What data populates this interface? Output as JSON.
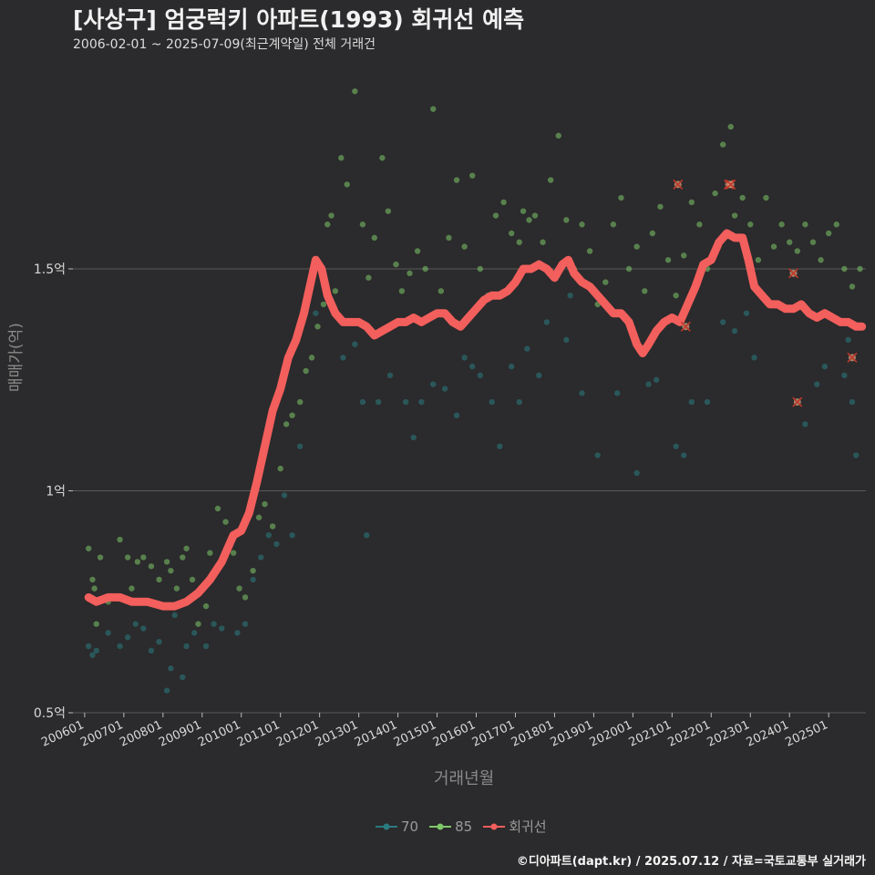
{
  "chart_data": {
    "type": "scatter",
    "title": "[사상구] 엄궁럭키 아파트(1993) 회귀선 예측",
    "subtitle": "2006-02-01 ~ 2025-07-09(최근계약일) 전체 거래건",
    "xlabel": "거래년월",
    "ylabel": "매매가(억)",
    "ylim": [
      0.5,
      1.9
    ],
    "xlim": [
      2005.7,
      2025.95
    ],
    "yticks": [
      0.5,
      1.0,
      1.5
    ],
    "ytick_labels": [
      "0.5억",
      "1억",
      "1.5억"
    ],
    "xticks": [
      2006,
      2007,
      2008,
      2009,
      2010,
      2011,
      2012,
      2013,
      2014,
      2015,
      2016,
      2017,
      2018,
      2019,
      2020,
      2021,
      2022,
      2023,
      2024,
      2025
    ],
    "xtick_labels": [
      "200601",
      "200701",
      "200801",
      "200901",
      "201001",
      "201101",
      "201201",
      "201301",
      "201401",
      "201501",
      "201601",
      "201701",
      "201801",
      "201901",
      "202001",
      "202101",
      "202201",
      "202301",
      "202401",
      "202501"
    ],
    "legend": [
      "70",
      "85",
      "회귀선"
    ],
    "legend_position": "bottom",
    "colors": {
      "s70": "#2a7b82",
      "s85": "#7ec96a",
      "line": "#f25f5c",
      "cancel": "#c0392b",
      "grid": "#5a5a5a"
    },
    "series": [
      {
        "name": "70",
        "points": [
          [
            2006.1,
            0.65
          ],
          [
            2006.2,
            0.63
          ],
          [
            2006.3,
            0.64
          ],
          [
            2006.6,
            0.68
          ],
          [
            2006.9,
            0.65
          ],
          [
            2007.1,
            0.67
          ],
          [
            2007.3,
            0.7
          ],
          [
            2007.5,
            0.69
          ],
          [
            2007.7,
            0.64
          ],
          [
            2007.9,
            0.66
          ],
          [
            2008.1,
            0.55
          ],
          [
            2008.2,
            0.6
          ],
          [
            2008.3,
            0.72
          ],
          [
            2008.5,
            0.58
          ],
          [
            2008.6,
            0.65
          ],
          [
            2008.8,
            0.68
          ],
          [
            2009.1,
            0.65
          ],
          [
            2009.3,
            0.7
          ],
          [
            2009.5,
            0.69
          ],
          [
            2009.9,
            0.68
          ],
          [
            2010.1,
            0.7
          ],
          [
            2010.3,
            0.8
          ],
          [
            2010.5,
            0.85
          ],
          [
            2010.7,
            0.9
          ],
          [
            2010.9,
            0.88
          ],
          [
            2011.1,
            0.99
          ],
          [
            2011.3,
            0.9
          ],
          [
            2011.5,
            1.1
          ],
          [
            2011.9,
            1.4
          ],
          [
            2012.6,
            1.3
          ],
          [
            2012.9,
            1.33
          ],
          [
            2013.1,
            1.2
          ],
          [
            2013.2,
            0.9
          ],
          [
            2013.5,
            1.2
          ],
          [
            2013.8,
            1.26
          ],
          [
            2014.2,
            1.2
          ],
          [
            2014.4,
            1.12
          ],
          [
            2014.6,
            1.2
          ],
          [
            2014.9,
            1.24
          ],
          [
            2015.2,
            1.23
          ],
          [
            2015.5,
            1.17
          ],
          [
            2015.7,
            1.3
          ],
          [
            2015.9,
            1.28
          ],
          [
            2016.1,
            1.26
          ],
          [
            2016.4,
            1.2
          ],
          [
            2016.6,
            1.1
          ],
          [
            2016.9,
            1.28
          ],
          [
            2017.1,
            1.2
          ],
          [
            2017.3,
            1.32
          ],
          [
            2017.6,
            1.26
          ],
          [
            2017.8,
            1.38
          ],
          [
            2018.3,
            1.34
          ],
          [
            2018.4,
            1.44
          ],
          [
            2018.7,
            1.22
          ],
          [
            2019.1,
            1.08
          ],
          [
            2019.6,
            1.22
          ],
          [
            2020.1,
            1.04
          ],
          [
            2020.4,
            1.24
          ],
          [
            2020.6,
            1.25
          ],
          [
            2021.1,
            1.1
          ],
          [
            2021.3,
            1.08
          ],
          [
            2021.5,
            1.2
          ],
          [
            2021.9,
            1.2
          ],
          [
            2022.3,
            1.38
          ],
          [
            2022.6,
            1.36
          ],
          [
            2022.9,
            1.4
          ],
          [
            2023.1,
            1.3
          ],
          [
            2024.4,
            1.15
          ],
          [
            2024.7,
            1.24
          ],
          [
            2024.9,
            1.28
          ],
          [
            2025.4,
            1.26
          ],
          [
            2025.5,
            1.34
          ],
          [
            2025.6,
            1.2
          ],
          [
            2025.7,
            1.08
          ]
        ]
      },
      {
        "name": "85",
        "points": [
          [
            2006.1,
            0.87
          ],
          [
            2006.2,
            0.8
          ],
          [
            2006.25,
            0.78
          ],
          [
            2006.3,
            0.7
          ],
          [
            2006.4,
            0.85
          ],
          [
            2006.6,
            0.75
          ],
          [
            2006.9,
            0.89
          ],
          [
            2007.1,
            0.85
          ],
          [
            2007.2,
            0.78
          ],
          [
            2007.35,
            0.84
          ],
          [
            2007.5,
            0.85
          ],
          [
            2007.6,
            0.75
          ],
          [
            2007.7,
            0.83
          ],
          [
            2007.9,
            0.8
          ],
          [
            2008.1,
            0.84
          ],
          [
            2008.2,
            0.82
          ],
          [
            2008.35,
            0.78
          ],
          [
            2008.5,
            0.85
          ],
          [
            2008.6,
            0.87
          ],
          [
            2008.75,
            0.8
          ],
          [
            2008.9,
            0.7
          ],
          [
            2009.1,
            0.74
          ],
          [
            2009.2,
            0.86
          ],
          [
            2009.4,
            0.96
          ],
          [
            2009.6,
            0.93
          ],
          [
            2009.8,
            0.86
          ],
          [
            2009.95,
            0.78
          ],
          [
            2010.1,
            0.76
          ],
          [
            2010.3,
            0.82
          ],
          [
            2010.45,
            0.94
          ],
          [
            2010.6,
            0.97
          ],
          [
            2010.8,
            0.92
          ],
          [
            2011.0,
            1.05
          ],
          [
            2011.15,
            1.15
          ],
          [
            2011.3,
            1.17
          ],
          [
            2011.5,
            1.2
          ],
          [
            2011.65,
            1.27
          ],
          [
            2011.8,
            1.3
          ],
          [
            2011.95,
            1.37
          ],
          [
            2012.1,
            1.42
          ],
          [
            2012.2,
            1.6
          ],
          [
            2012.3,
            1.62
          ],
          [
            2012.4,
            1.45
          ],
          [
            2012.55,
            1.75
          ],
          [
            2012.7,
            1.69
          ],
          [
            2012.9,
            1.9
          ],
          [
            2013.1,
            1.6
          ],
          [
            2013.25,
            1.48
          ],
          [
            2013.4,
            1.57
          ],
          [
            2013.6,
            1.75
          ],
          [
            2013.75,
            1.63
          ],
          [
            2013.95,
            1.51
          ],
          [
            2014.1,
            1.45
          ],
          [
            2014.3,
            1.49
          ],
          [
            2014.5,
            1.54
          ],
          [
            2014.7,
            1.5
          ],
          [
            2014.9,
            1.86
          ],
          [
            2015.1,
            1.45
          ],
          [
            2015.3,
            1.57
          ],
          [
            2015.5,
            1.7
          ],
          [
            2015.7,
            1.55
          ],
          [
            2015.9,
            1.71
          ],
          [
            2016.1,
            1.5
          ],
          [
            2016.3,
            1.44
          ],
          [
            2016.5,
            1.62
          ],
          [
            2016.7,
            1.65
          ],
          [
            2016.9,
            1.58
          ],
          [
            2017.1,
            1.56
          ],
          [
            2017.2,
            1.63
          ],
          [
            2017.35,
            1.61
          ],
          [
            2017.5,
            1.62
          ],
          [
            2017.7,
            1.56
          ],
          [
            2017.9,
            1.7
          ],
          [
            2018.1,
            1.8
          ],
          [
            2018.3,
            1.61
          ],
          [
            2018.5,
            1.5
          ],
          [
            2018.7,
            1.6
          ],
          [
            2018.9,
            1.54
          ],
          [
            2019.1,
            1.42
          ],
          [
            2019.3,
            1.47
          ],
          [
            2019.5,
            1.6
          ],
          [
            2019.7,
            1.66
          ],
          [
            2019.9,
            1.5
          ],
          [
            2020.1,
            1.55
          ],
          [
            2020.3,
            1.45
          ],
          [
            2020.5,
            1.58
          ],
          [
            2020.7,
            1.64
          ],
          [
            2020.9,
            1.52
          ],
          [
            2021.1,
            1.44
          ],
          [
            2021.3,
            1.53
          ],
          [
            2021.5,
            1.65
          ],
          [
            2021.7,
            1.6
          ],
          [
            2021.9,
            1.5
          ],
          [
            2022.1,
            1.67
          ],
          [
            2022.3,
            1.78
          ],
          [
            2022.5,
            1.82
          ],
          [
            2022.6,
            1.62
          ],
          [
            2022.8,
            1.66
          ],
          [
            2023.0,
            1.6
          ],
          [
            2023.2,
            1.52
          ],
          [
            2023.4,
            1.66
          ],
          [
            2023.6,
            1.55
          ],
          [
            2023.8,
            1.6
          ],
          [
            2024.0,
            1.56
          ],
          [
            2024.2,
            1.54
          ],
          [
            2024.4,
            1.6
          ],
          [
            2024.6,
            1.56
          ],
          [
            2024.8,
            1.52
          ],
          [
            2025.0,
            1.58
          ],
          [
            2025.2,
            1.6
          ],
          [
            2025.4,
            1.5
          ],
          [
            2025.6,
            1.46
          ],
          [
            2025.8,
            1.5
          ]
        ]
      },
      {
        "name": "회귀선",
        "points": [
          [
            2006.1,
            0.76
          ],
          [
            2006.3,
            0.75
          ],
          [
            2006.6,
            0.76
          ],
          [
            2006.9,
            0.76
          ],
          [
            2007.2,
            0.75
          ],
          [
            2007.6,
            0.75
          ],
          [
            2008.0,
            0.74
          ],
          [
            2008.3,
            0.74
          ],
          [
            2008.6,
            0.75
          ],
          [
            2008.9,
            0.77
          ],
          [
            2009.2,
            0.8
          ],
          [
            2009.5,
            0.84
          ],
          [
            2009.8,
            0.9
          ],
          [
            2010.0,
            0.91
          ],
          [
            2010.2,
            0.95
          ],
          [
            2010.4,
            1.02
          ],
          [
            2010.6,
            1.1
          ],
          [
            2010.8,
            1.18
          ],
          [
            2011.0,
            1.23
          ],
          [
            2011.2,
            1.3
          ],
          [
            2011.4,
            1.34
          ],
          [
            2011.6,
            1.4
          ],
          [
            2011.75,
            1.46
          ],
          [
            2011.9,
            1.52
          ],
          [
            2012.05,
            1.5
          ],
          [
            2012.2,
            1.44
          ],
          [
            2012.4,
            1.4
          ],
          [
            2012.6,
            1.38
          ],
          [
            2012.8,
            1.38
          ],
          [
            2013.0,
            1.38
          ],
          [
            2013.2,
            1.37
          ],
          [
            2013.4,
            1.35
          ],
          [
            2013.6,
            1.36
          ],
          [
            2013.8,
            1.37
          ],
          [
            2014.0,
            1.38
          ],
          [
            2014.2,
            1.38
          ],
          [
            2014.4,
            1.39
          ],
          [
            2014.6,
            1.38
          ],
          [
            2014.8,
            1.39
          ],
          [
            2015.0,
            1.4
          ],
          [
            2015.2,
            1.4
          ],
          [
            2015.4,
            1.38
          ],
          [
            2015.6,
            1.37
          ],
          [
            2015.8,
            1.39
          ],
          [
            2016.0,
            1.41
          ],
          [
            2016.2,
            1.43
          ],
          [
            2016.4,
            1.44
          ],
          [
            2016.6,
            1.44
          ],
          [
            2016.8,
            1.45
          ],
          [
            2017.0,
            1.47
          ],
          [
            2017.2,
            1.5
          ],
          [
            2017.4,
            1.5
          ],
          [
            2017.6,
            1.51
          ],
          [
            2017.8,
            1.5
          ],
          [
            2018.0,
            1.48
          ],
          [
            2018.2,
            1.51
          ],
          [
            2018.35,
            1.52
          ],
          [
            2018.5,
            1.49
          ],
          [
            2018.7,
            1.47
          ],
          [
            2018.9,
            1.46
          ],
          [
            2019.1,
            1.44
          ],
          [
            2019.3,
            1.42
          ],
          [
            2019.5,
            1.4
          ],
          [
            2019.7,
            1.4
          ],
          [
            2019.9,
            1.38
          ],
          [
            2020.1,
            1.33
          ],
          [
            2020.25,
            1.31
          ],
          [
            2020.4,
            1.33
          ],
          [
            2020.6,
            1.36
          ],
          [
            2020.8,
            1.38
          ],
          [
            2021.0,
            1.39
          ],
          [
            2021.2,
            1.38
          ],
          [
            2021.4,
            1.42
          ],
          [
            2021.6,
            1.46
          ],
          [
            2021.8,
            1.51
          ],
          [
            2022.0,
            1.52
          ],
          [
            2022.2,
            1.56
          ],
          [
            2022.4,
            1.58
          ],
          [
            2022.6,
            1.57
          ],
          [
            2022.8,
            1.57
          ],
          [
            2022.95,
            1.52
          ],
          [
            2023.1,
            1.46
          ],
          [
            2023.3,
            1.44
          ],
          [
            2023.5,
            1.42
          ],
          [
            2023.7,
            1.42
          ],
          [
            2023.9,
            1.41
          ],
          [
            2024.1,
            1.41
          ],
          [
            2024.3,
            1.42
          ],
          [
            2024.5,
            1.4
          ],
          [
            2024.7,
            1.39
          ],
          [
            2024.9,
            1.4
          ],
          [
            2025.1,
            1.39
          ],
          [
            2025.3,
            1.38
          ],
          [
            2025.5,
            1.38
          ],
          [
            2025.7,
            1.37
          ],
          [
            2025.85,
            1.37
          ]
        ]
      }
    ],
    "cancelled_points": [
      [
        2021.15,
        1.69
      ],
      [
        2022.45,
        1.69
      ],
      [
        2022.5,
        1.69
      ],
      [
        2024.1,
        1.49
      ],
      [
        2024.2,
        1.2
      ],
      [
        2025.6,
        1.3
      ],
      [
        2021.35,
        1.37
      ]
    ]
  },
  "credit": "©디아파트(dapt.kr) / 2025.07.12 / 자료=국토교통부 실거래가"
}
